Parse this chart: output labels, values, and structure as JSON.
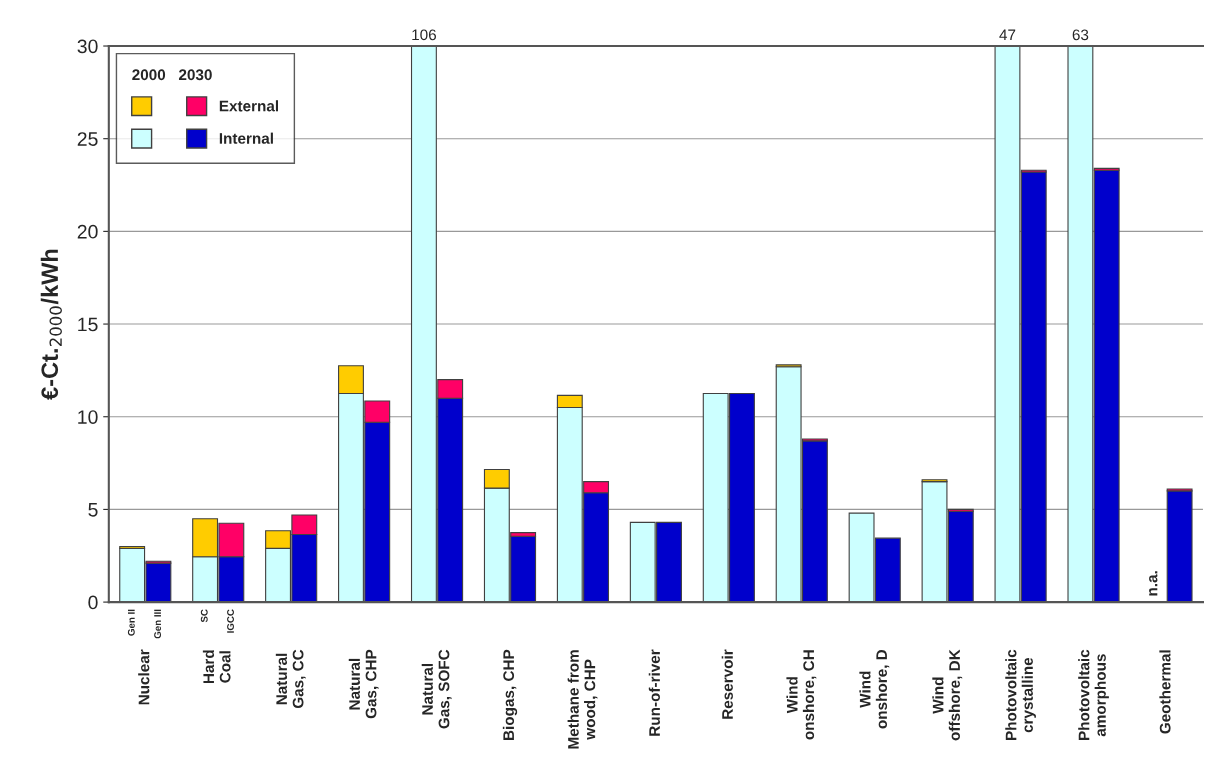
{
  "chart_data": {
    "type": "bar",
    "ylabel": "€-Ct.$_{2000}$/kWh",
    "legend_title": "2000   2030",
    "categories": [
      "Nuclear",
      "Hard\nCoal",
      "Natural\nGas, CC",
      "Natural\nGas, CHP",
      "Natural\nGas, SOFC",
      "Biogas, CHP",
      "Methane from\nwood, CHP",
      "Run-of-river",
      "Reservoir",
      "Wind\nonshore, CH",
      "Wind\nonshore, D",
      "Wind\noffshore, DK",
      "Photovoltaic\ncrystalline",
      "Photovoltaic\namorphous",
      "Geothermal"
    ],
    "series": [
      {
        "color": "#ccffff",
        "values": [
          2.9,
          2.45,
          2.9,
          11.25,
          106,
          6.15,
          10.5,
          4.3,
          11.25,
          12.7,
          4.8,
          6.5,
          47,
          63,
          null
        ],
        "base": [
          0,
          0,
          0,
          0,
          0,
          0,
          0,
          0,
          0,
          0,
          0,
          0,
          0,
          0,
          null
        ],
        "value_labels": [
          null,
          null,
          null,
          null,
          "106",
          null,
          null,
          null,
          null,
          null,
          null,
          null,
          "47",
          "63",
          "n.a."
        ]
      },
      {
        "color": "#ffcc00",
        "values": [
          0.1,
          2.05,
          0.95,
          1.5,
          null,
          1.0,
          0.65,
          null,
          null,
          0.1,
          null,
          0.1,
          null,
          null,
          null
        ],
        "base": [
          2.9,
          2.45,
          2.9,
          11.25,
          null,
          6.15,
          10.5,
          null,
          null,
          12.7,
          null,
          6.5,
          null,
          null,
          null
        ]
      },
      {
        "name": "Internal",
        "color": "#0000cc",
        "values": [
          2.1,
          2.45,
          3.65,
          9.7,
          11.0,
          3.55,
          5.9,
          4.3,
          11.25,
          8.7,
          3.45,
          4.9,
          23.2,
          23.3,
          6.0
        ],
        "base": [
          0,
          0,
          0,
          0,
          0,
          0,
          0,
          0,
          0,
          0,
          0,
          0,
          0,
          0,
          0
        ]
      },
      {
        "name": "External",
        "color": "#ff0066",
        "values": [
          0.1,
          1.8,
          1.05,
          1.15,
          1.0,
          0.2,
          0.6,
          null,
          null,
          0.1,
          null,
          0.1,
          0.1,
          0.1,
          0.1
        ],
        "base": [
          2.1,
          2.45,
          3.65,
          9.7,
          11.0,
          3.55,
          5.9,
          null,
          null,
          8.7,
          null,
          4.9,
          23.2,
          23.3,
          6.0
        ]
      }
    ],
    "annotations": [
      {
        "text": "Gen II",
        "x": "Nuclear",
        "y": 0
      },
      {
        "text": "Gen III",
        "x": "Nuclear",
        "y": 0
      },
      {
        "text": "SC",
        "x": "Hard\nCoal",
        "y": 0
      },
      {
        "text": "IGCC",
        "x": "Hard\nCoal",
        "y": 0
      }
    ],
    "ylim": [
      0,
      30
    ],
    "yticks": [
      0,
      5,
      10,
      15,
      20,
      25,
      30
    ],
    "grid": "y",
    "legend": "top left"
  }
}
